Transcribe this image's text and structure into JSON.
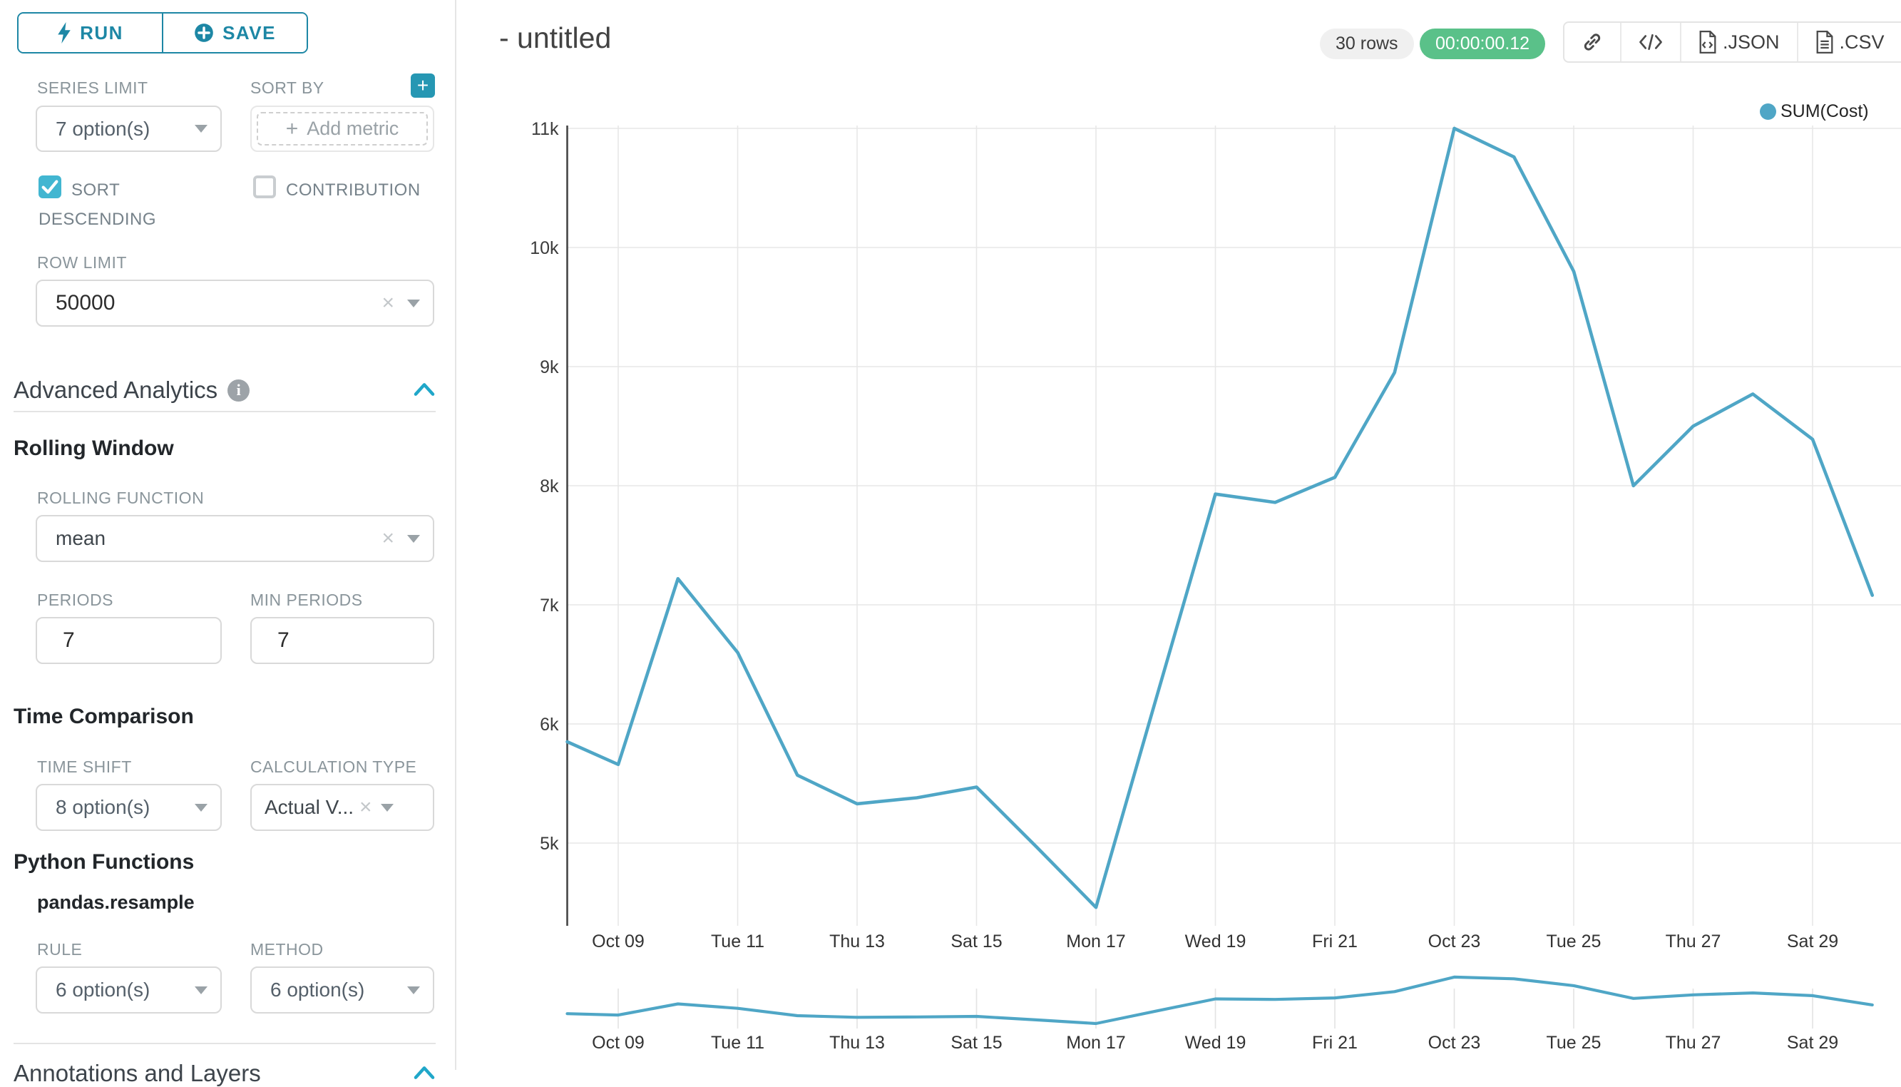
{
  "sidebar": {
    "run_label": "RUN",
    "save_label": "SAVE",
    "series_limit_label": "SERIES LIMIT",
    "series_limit_value": "7 option(s)",
    "sort_by_label": "SORT BY",
    "add_metric_placeholder": "Add metric",
    "sort_descending_label": "SORT DESCENDING",
    "contribution_label": "CONTRIBUTION",
    "row_limit_label": "ROW LIMIT",
    "row_limit_value": "50000",
    "advanced_analytics_title": "Advanced Analytics",
    "rolling_window_title": "Rolling Window",
    "rolling_function_label": "ROLLING FUNCTION",
    "rolling_function_value": "mean",
    "periods_label": "PERIODS",
    "periods_value": "7",
    "min_periods_label": "MIN PERIODS",
    "min_periods_value": "7",
    "time_comparison_title": "Time Comparison",
    "time_shift_label": "TIME SHIFT",
    "time_shift_value": "8 option(s)",
    "calculation_type_label": "CALCULATION TYPE",
    "calculation_type_value": "Actual V...",
    "python_functions_title": "Python Functions",
    "pandas_resample_label": "pandas.resample",
    "rule_label": "RULE",
    "rule_value": "6 option(s)",
    "method_label": "METHOD",
    "method_value": "6 option(s)",
    "annotations_title": "Annotations and Layers"
  },
  "header": {
    "title": "- untitled",
    "rows_badge": "30 rows",
    "timer_badge": "00:00:00.12",
    "json_label": ".JSON",
    "csv_label": ".CSV"
  },
  "colors": {
    "accent_teal": "#1d87a5",
    "checkbox_teal": "#42b6d1",
    "line_blue": "#4fa6c6",
    "success_green": "#5ac189",
    "gridline": "#e7e7e7",
    "axis_line": "#454545"
  },
  "chart_data": {
    "type": "line",
    "title": "",
    "xlabel": "",
    "ylabel": "",
    "legend_position": "top-right",
    "grid": true,
    "has_context_minichart": true,
    "legend": [
      {
        "label": "SUM(Cost)",
        "color": "#4fa6c6"
      }
    ],
    "x": [
      "Oct 08",
      "Oct 09",
      "Oct 10",
      "Oct 11",
      "Oct 12",
      "Oct 13",
      "Oct 14",
      "Oct 15",
      "Oct 16",
      "Oct 17",
      "Oct 18",
      "Oct 19",
      "Oct 20",
      "Oct 21",
      "Oct 22",
      "Oct 23",
      "Oct 24",
      "Oct 25",
      "Oct 26",
      "Oct 27",
      "Oct 28",
      "Oct 29",
      "Oct 30"
    ],
    "series": [
      {
        "name": "SUM(Cost)",
        "values": [
          5850,
          5660,
          7220,
          6600,
          5570,
          5330,
          5380,
          5470,
          4970,
          4460,
          6200,
          7930,
          7860,
          8070,
          8950,
          11000,
          10760,
          9800,
          8000,
          8500,
          8770,
          8390,
          7080
        ]
      }
    ],
    "ylim": [
      4400,
      11000
    ],
    "y_ticks": [
      {
        "v": 5000,
        "label": "5k"
      },
      {
        "v": 6000,
        "label": "6k"
      },
      {
        "v": 7000,
        "label": "7k"
      },
      {
        "v": 8000,
        "label": "8k"
      },
      {
        "v": 9000,
        "label": "9k"
      },
      {
        "v": 10000,
        "label": "10k"
      },
      {
        "v": 11000,
        "label": "11k"
      }
    ],
    "x_ticks": [
      {
        "i": 1,
        "label": "Oct 09"
      },
      {
        "i": 3,
        "label": "Tue 11"
      },
      {
        "i": 5,
        "label": "Thu 13"
      },
      {
        "i": 7,
        "label": "Sat 15"
      },
      {
        "i": 9,
        "label": "Mon 17"
      },
      {
        "i": 11,
        "label": "Wed 19"
      },
      {
        "i": 13,
        "label": "Fri 21"
      },
      {
        "i": 15,
        "label": "Oct 23"
      },
      {
        "i": 17,
        "label": "Tue 25"
      },
      {
        "i": 19,
        "label": "Thu 27"
      },
      {
        "i": 21,
        "label": "Sat 29"
      }
    ]
  }
}
